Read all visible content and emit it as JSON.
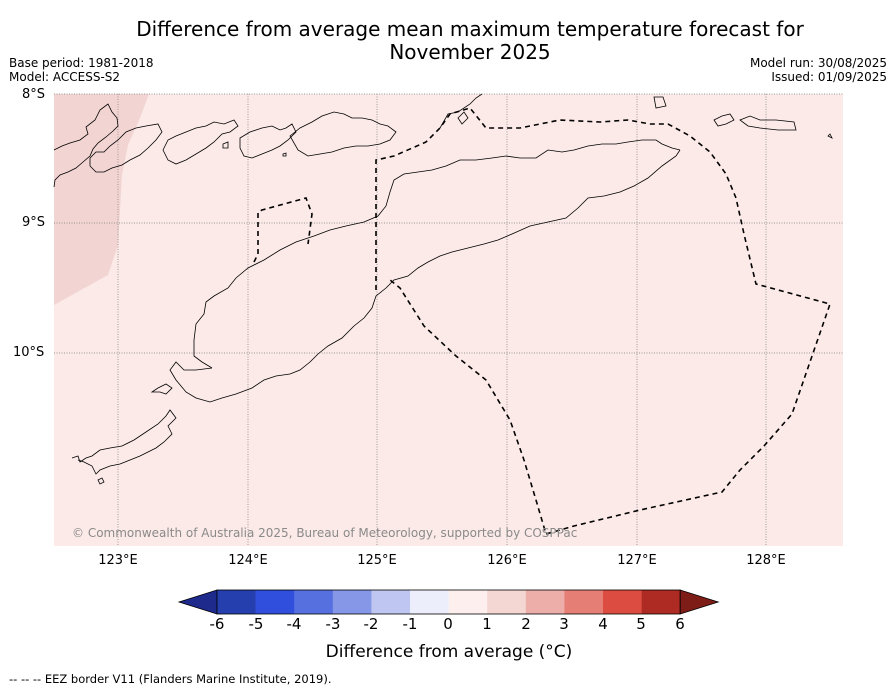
{
  "title": {
    "line1": "Difference from average mean maximum temperature forecast for",
    "line2": "November 2025"
  },
  "meta": {
    "base_period": "Base period: 1981-2018",
    "model": "Model: ACCESS-S2",
    "model_run": "Model run: 30/08/2025",
    "issued": "Issued: 01/09/2025"
  },
  "map": {
    "latitude_labels": [
      "8°S",
      "9°S",
      "10°S"
    ],
    "longitude_labels": [
      "123°E",
      "124°E",
      "125°E",
      "126°E",
      "127°E",
      "128°E"
    ],
    "copyright": "© Commonwealth of Australia 2025, Bureau of Meteorology, supported by COSPPac",
    "background_color": "#fbeae8",
    "warm_patch_color": "#f2d5d3",
    "regions": [
      "west-timor-coast",
      "alor-islands",
      "timor-leste-coast",
      "wetar-area",
      "eez-border"
    ]
  },
  "colorbar": {
    "ticks": [
      "-6",
      "-5",
      "-4",
      "-3",
      "-2",
      "-1",
      "0",
      "1",
      "2",
      "3",
      "4",
      "5",
      "6"
    ],
    "colors": [
      "#1e2a8c",
      "#263faf",
      "#2f4fdc",
      "#5670e0",
      "#8597e6",
      "#bec6f1",
      "#eceefb",
      "#fcefee",
      "#f4d6d3",
      "#edaea9",
      "#e57f76",
      "#dd4c41",
      "#ad2b22",
      "#7e1d18"
    ],
    "label": "Difference from average (°C)"
  },
  "footnote": "--  --  -- EEZ border V11 (Flanders Marine Institute, 2019)."
}
